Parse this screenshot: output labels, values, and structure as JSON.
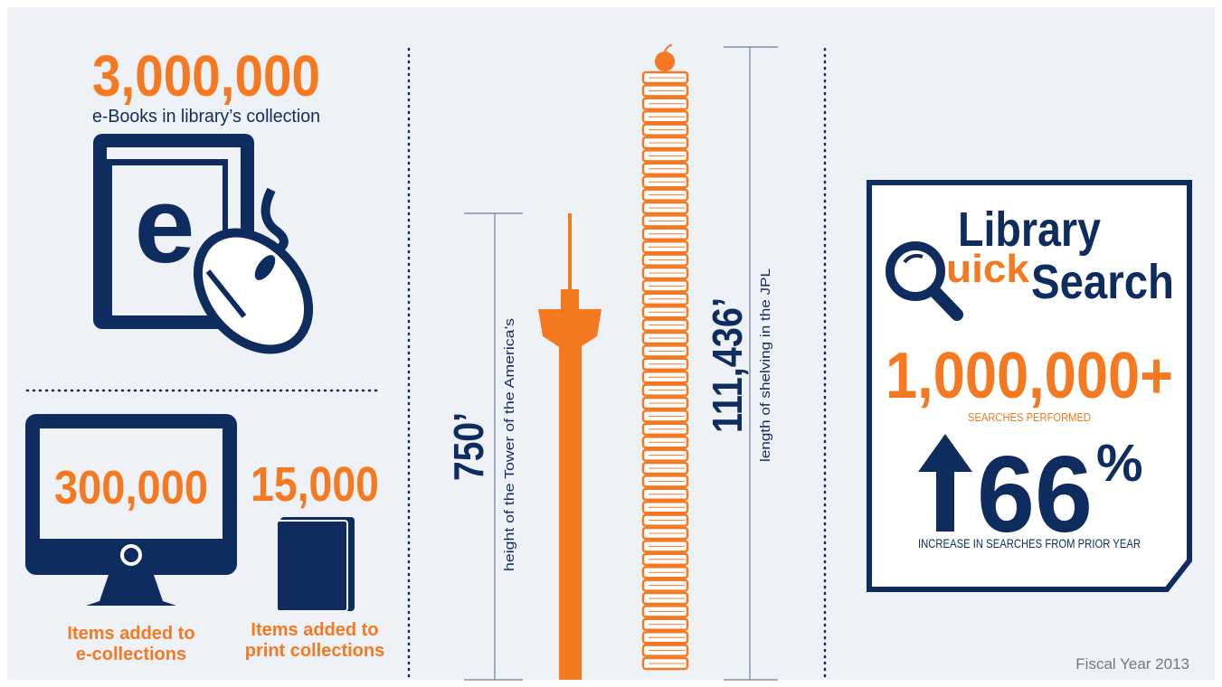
{
  "ebooks": {
    "count": "3,000,000",
    "label": "e-Books in library’s collection",
    "icon_letter": "e"
  },
  "e_collections": {
    "count": "300,000",
    "label_lines": [
      "Items added to",
      "e-collections"
    ]
  },
  "print_collections": {
    "count": "15,000",
    "label_lines": [
      "Items added to",
      "print collections"
    ]
  },
  "tower": {
    "height": "750’",
    "label": "height of the Tower of the America’s"
  },
  "shelving": {
    "length": "111,436’",
    "label": "length of shelving in the JPL"
  },
  "quicksearch": {
    "title_line1": "Library",
    "title_q_rest": "uick",
    "title_search": "Search",
    "searches": "1,000,000+",
    "searches_label": "SEARCHES PERFORMED",
    "increase": "66",
    "increase_unit": "%",
    "increase_label": "INCREASE IN SEARCHES FROM PRIOR YEAR"
  },
  "footer": "Fiscal Year 2013"
}
